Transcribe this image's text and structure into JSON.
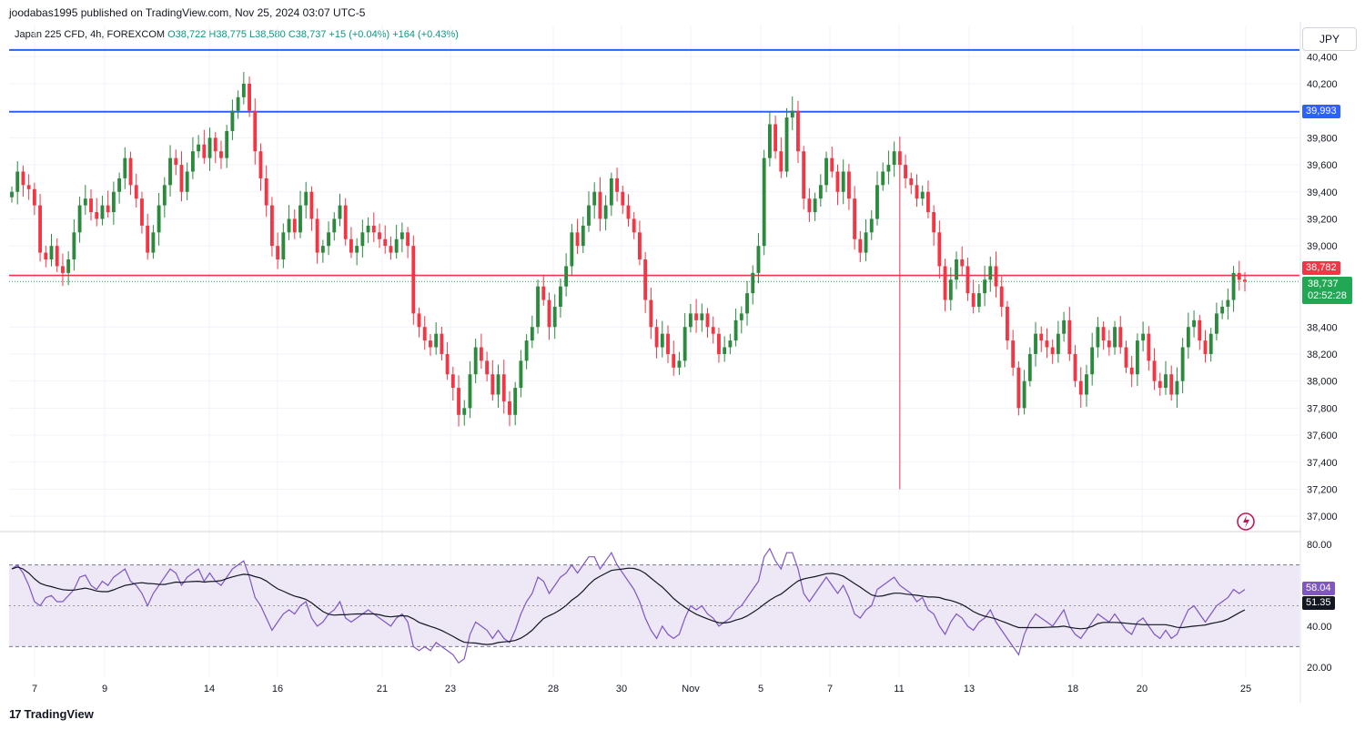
{
  "header": {
    "publisher": "joodabas1995 published on TradingView.com, Nov 25, 2024 03:07 UTC-5",
    "symbol": "Japan 225 CFD, 4h, FOREXCOM",
    "ohlc": "O38,722  H38,775  L38,580  C38,737  +15 (+0.04%)  +164 (+0.43%)"
  },
  "currency": "JPY",
  "brand": "TradingView",
  "tags": {
    "line_top": "39,993",
    "line_red": "38,782",
    "price": "38,737",
    "countdown": "02:52:28",
    "rsi": "58.04",
    "rsi_ma": "51.35"
  },
  "colors": {
    "up": "#2b8a3e",
    "down": "#f23645",
    "level_blue": "#2962ff",
    "level_red": "#f23645",
    "rsi": "#7e57c2",
    "rsi_ma": "#131722",
    "rsi_band": "#ede7f6"
  },
  "chart_data": [
    {
      "type": "candlestick",
      "interval": "4h",
      "y_ticks": [
        "40,400",
        "40,200",
        "39,800",
        "39,600",
        "39,400",
        "39,200",
        "39,000",
        "38,400",
        "38,200",
        "38,000",
        "37,800",
        "37,600",
        "37,400",
        "37,200",
        "37,000"
      ],
      "x_ticks": [
        "7",
        "9",
        "14",
        "16",
        "21",
        "23",
        "28",
        "30",
        "Nov",
        "5",
        "7",
        "11",
        "13",
        "18",
        "20",
        "25"
      ],
      "ylim": [
        36900,
        40550
      ],
      "levels": [
        40450,
        39993,
        38782
      ],
      "last_price": 38737,
      "closes": [
        39400,
        39550,
        39450,
        39420,
        39300,
        38950,
        38900,
        39000,
        38850,
        38800,
        38900,
        39100,
        39300,
        39350,
        39250,
        39200,
        39300,
        39250,
        39400,
        39500,
        39650,
        39450,
        39350,
        39150,
        38950,
        39100,
        39300,
        39450,
        39650,
        39600,
        39400,
        39550,
        39700,
        39750,
        39650,
        39800,
        39700,
        39650,
        39850,
        40000,
        40100,
        40200,
        40000,
        39700,
        39500,
        39300,
        39000,
        38900,
        39100,
        39200,
        39100,
        39300,
        39400,
        39200,
        38950,
        39000,
        39100,
        39200,
        39300,
        39050,
        38950,
        39000,
        39100,
        39150,
        39100,
        39050,
        39000,
        38950,
        39050,
        39100,
        39000,
        38500,
        38400,
        38300,
        38250,
        38350,
        38200,
        38050,
        37950,
        37750,
        37800,
        38050,
        38250,
        38150,
        38050,
        37900,
        38050,
        37850,
        37750,
        37950,
        38150,
        38300,
        38400,
        38700,
        38600,
        38400,
        38550,
        38700,
        38850,
        39100,
        39000,
        39150,
        39300,
        39400,
        39200,
        39300,
        39500,
        39400,
        39300,
        39200,
        39100,
        38900,
        38600,
        38400,
        38250,
        38350,
        38200,
        38100,
        38150,
        38400,
        38500,
        38450,
        38500,
        38400,
        38350,
        38200,
        38250,
        38300,
        38450,
        38500,
        38650,
        38800,
        39000,
        39650,
        39900,
        39700,
        39550,
        39950,
        40000,
        39700,
        39350,
        39250,
        39350,
        39450,
        39650,
        39550,
        39400,
        39550,
        39350,
        39050,
        38950,
        39100,
        39200,
        39450,
        39550,
        39600,
        39700,
        39600,
        39500,
        39450,
        39350,
        39400,
        39250,
        39100,
        38850,
        38600,
        38750,
        38900,
        38850,
        38650,
        38550,
        38650,
        38750,
        38850,
        38700,
        38550,
        38300,
        38100,
        37800,
        38000,
        38200,
        38350,
        38300,
        38250,
        38200,
        38350,
        38450,
        38200,
        38000,
        37900,
        38050,
        38250,
        38400,
        38300,
        38250,
        38400,
        38250,
        38100,
        38050,
        38300,
        38350,
        38150,
        38000,
        37950,
        38050,
        37900,
        38000,
        38250,
        38400,
        38450,
        38300,
        38200,
        38350,
        38500,
        38550,
        38600,
        38800,
        38750,
        38737
      ],
      "rsi": {
        "ylim": [
          15,
          85
        ],
        "band": [
          70,
          30
        ],
        "y_ticks": [
          "80.00",
          "40.00",
          "20.00"
        ],
        "values": [
          68,
          70,
          66,
          60,
          52,
          50,
          54,
          55,
          52,
          52,
          55,
          58,
          64,
          65,
          60,
          58,
          62,
          60,
          64,
          66,
          68,
          62,
          60,
          56,
          50,
          56,
          60,
          64,
          68,
          66,
          60,
          64,
          66,
          68,
          62,
          66,
          62,
          60,
          64,
          68,
          70,
          72,
          64,
          54,
          50,
          44,
          38,
          42,
          46,
          48,
          46,
          50,
          52,
          44,
          40,
          42,
          46,
          48,
          52,
          44,
          42,
          44,
          46,
          48,
          46,
          44,
          42,
          40,
          44,
          46,
          42,
          30,
          28,
          30,
          28,
          32,
          30,
          28,
          26,
          22,
          24,
          36,
          42,
          40,
          38,
          34,
          38,
          34,
          32,
          38,
          46,
          52,
          56,
          64,
          62,
          56,
          60,
          64,
          66,
          70,
          66,
          70,
          74,
          74,
          68,
          72,
          76,
          70,
          66,
          62,
          58,
          52,
          44,
          38,
          34,
          40,
          36,
          34,
          36,
          44,
          50,
          48,
          50,
          46,
          44,
          40,
          42,
          44,
          48,
          50,
          54,
          58,
          62,
          74,
          78,
          72,
          68,
          76,
          76,
          68,
          56,
          52,
          56,
          60,
          64,
          60,
          56,
          60,
          54,
          46,
          44,
          48,
          50,
          58,
          60,
          62,
          64,
          60,
          58,
          56,
          52,
          54,
          48,
          46,
          40,
          36,
          42,
          46,
          44,
          40,
          38,
          42,
          44,
          48,
          42,
          38,
          34,
          30,
          26,
          36,
          42,
          46,
          44,
          42,
          40,
          44,
          48,
          40,
          36,
          34,
          38,
          42,
          46,
          44,
          42,
          46,
          42,
          38,
          36,
          42,
          44,
          40,
          36,
          34,
          38,
          34,
          36,
          42,
          48,
          50,
          46,
          42,
          46,
          50,
          52,
          54,
          58,
          56,
          58
        ]
      }
    }
  ]
}
